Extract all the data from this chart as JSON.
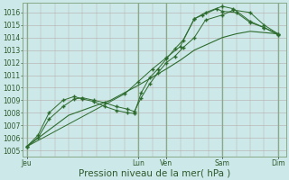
{
  "xlabel": "Pression niveau de la mer( hPa )",
  "bg_color": "#cce8e8",
  "plot_bg_color": "#cce8e8",
  "line_color": "#2d6b2d",
  "ylim": [
    1004.5,
    1016.8
  ],
  "yticks": [
    1005,
    1006,
    1007,
    1008,
    1009,
    1010,
    1011,
    1012,
    1013,
    1014,
    1015,
    1016
  ],
  "day_positions": [
    0,
    4.0,
    5.0,
    7.0,
    9.0
  ],
  "day_labels": [
    "Jeu",
    "Lun",
    "Ven",
    "Sam",
    "Dim"
  ],
  "series1": {
    "x": [
      0.0,
      0.4,
      0.8,
      1.3,
      1.7,
      2.0,
      2.4,
      2.8,
      3.2,
      3.6,
      3.85,
      4.1,
      4.4,
      4.7,
      5.0,
      5.3,
      5.6,
      6.0,
      6.4,
      7.0,
      7.4,
      8.0,
      8.5,
      9.0
    ],
    "y": [
      1005.3,
      1006.0,
      1007.5,
      1008.5,
      1009.1,
      1009.2,
      1009.0,
      1008.8,
      1008.5,
      1008.3,
      1008.1,
      1009.2,
      1010.3,
      1011.2,
      1012.0,
      1012.5,
      1013.2,
      1014.0,
      1015.4,
      1015.8,
      1016.2,
      1016.0,
      1015.0,
      1014.3
    ]
  },
  "series2": {
    "x": [
      0.0,
      0.4,
      0.8,
      1.3,
      1.7,
      2.0,
      2.4,
      2.8,
      3.2,
      3.6,
      3.85,
      4.1,
      4.4,
      4.7,
      5.0,
      5.3,
      5.6,
      6.0,
      6.4,
      7.0,
      7.4,
      8.0,
      8.5,
      9.0
    ],
    "y": [
      1005.3,
      1006.2,
      1008.0,
      1009.0,
      1009.3,
      1009.1,
      1008.9,
      1008.5,
      1008.2,
      1008.0,
      1007.95,
      1009.6,
      1010.8,
      1011.5,
      1012.3,
      1013.1,
      1013.8,
      1015.5,
      1016.0,
      1016.5,
      1016.3,
      1015.3,
      1014.8,
      1014.2
    ]
  },
  "series3": {
    "x": [
      0.0,
      1.5,
      3.0,
      4.0,
      5.0,
      5.5,
      6.0,
      6.5,
      7.0,
      7.5,
      8.0,
      8.5,
      9.0
    ],
    "y": [
      1005.3,
      1007.8,
      1009.0,
      1010.2,
      1011.5,
      1012.2,
      1013.0,
      1013.5,
      1014.0,
      1014.3,
      1014.5,
      1014.4,
      1014.3
    ]
  },
  "series4": {
    "x": [
      0.0,
      3.5,
      4.0,
      4.5,
      5.0,
      5.5,
      6.0,
      6.3,
      6.8,
      7.0,
      7.5,
      8.0,
      8.5,
      9.0
    ],
    "y": [
      1005.3,
      1009.5,
      1010.5,
      1011.5,
      1012.4,
      1013.3,
      1015.5,
      1015.8,
      1016.3,
      1016.1,
      1016.0,
      1015.2,
      1014.8,
      1014.3
    ]
  },
  "vline_positions": [
    0.0,
    4.0,
    5.0,
    7.0,
    9.0
  ],
  "xlim": [
    -0.15,
    9.3
  ],
  "font_color": "#2d5a2d",
  "tick_fontsize": 5.5,
  "xlabel_fontsize": 7.5,
  "minor_grid_color": "#b8aaaa",
  "major_grid_color": "#88aa88"
}
